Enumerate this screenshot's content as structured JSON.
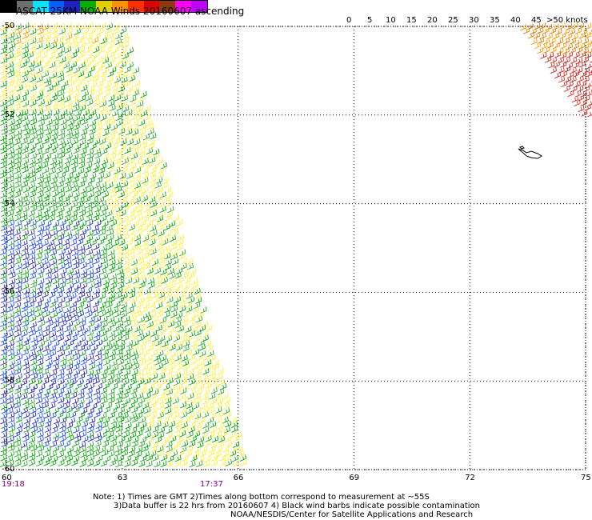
{
  "header": {
    "title": "ASCAT 25KM NOAA Winds 20160607 ascending",
    "units": ">50 knots"
  },
  "legend": {
    "labels": [
      "0",
      "5",
      "10",
      "15",
      "20",
      "25",
      "30",
      "35",
      "40",
      "45"
    ],
    "colors": [
      "#000000",
      "#6e6e6e",
      "#00e5ff",
      "#0060ff",
      "#2020c0",
      "#00b000",
      "#e0d000",
      "#ff9000",
      "#ff3000",
      "#e00000",
      "#8b3a0e",
      "#ff00ff",
      "#c000ff"
    ]
  },
  "map": {
    "lon_labels": [
      "60",
      "63",
      "66",
      "69",
      "72",
      "75"
    ],
    "lat_labels": [
      "-50",
      "-52",
      "-54",
      "-56",
      "-58",
      "-60"
    ],
    "lon_range": [
      60,
      75
    ],
    "lat_range": [
      -60,
      -50
    ],
    "grid": "dotted",
    "times": [
      "19:18",
      "17:37"
    ],
    "swath": "left edge from 60E to about 66E",
    "island_near": {
      "lon": 73.5,
      "lat": -53.0
    }
  },
  "notes": {
    "line1": "Note: 1) Times are GMT  2)Times along bottom correspond to measurement at ~55S",
    "line2": "3)Data buffer is 22 hrs from 20160607  4) Black wind barbs indicate possible contamination",
    "line3": "NOAA/NESDIS/Center for Satellite Applications and Research"
  }
}
